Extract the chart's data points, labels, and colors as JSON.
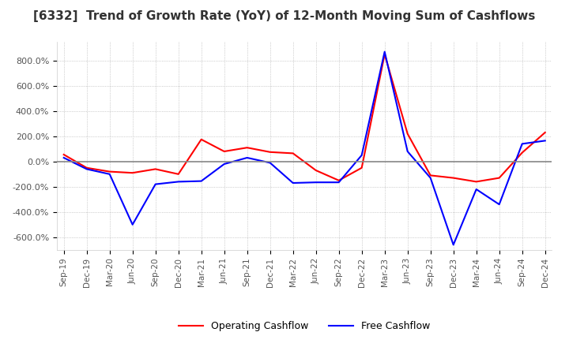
{
  "title": "[6332]  Trend of Growth Rate (YoY) of 12-Month Moving Sum of Cashflows",
  "title_fontsize": 11,
  "ylim": [
    -700,
    950
  ],
  "yticks": [
    -600,
    -400,
    -200,
    0,
    200,
    400,
    600,
    800
  ],
  "background_color": "#ffffff",
  "grid_color": "#aaaaaa",
  "legend": [
    "Operating Cashflow",
    "Free Cashflow"
  ],
  "legend_colors": [
    "#ff0000",
    "#0000ff"
  ],
  "x_labels": [
    "Sep-19",
    "Dec-19",
    "Mar-20",
    "Jun-20",
    "Sep-20",
    "Dec-20",
    "Mar-21",
    "Jun-21",
    "Sep-21",
    "Dec-21",
    "Mar-22",
    "Jun-22",
    "Sep-22",
    "Dec-22",
    "Mar-23",
    "Jun-23",
    "Sep-23",
    "Dec-23",
    "Mar-24",
    "Jun-24",
    "Sep-24",
    "Dec-24"
  ],
  "operating_cashflow": [
    55,
    -50,
    -80,
    -90,
    -60,
    -100,
    175,
    80,
    110,
    75,
    65,
    -70,
    -150,
    -50,
    850,
    220,
    -110,
    -130,
    -160,
    -130,
    70,
    230
  ],
  "free_cashflow": [
    30,
    -60,
    -100,
    -500,
    -180,
    -160,
    -155,
    -20,
    30,
    -10,
    -170,
    -165,
    -165,
    50,
    870,
    80,
    -130,
    -660,
    -220,
    -340,
    140,
    165
  ]
}
